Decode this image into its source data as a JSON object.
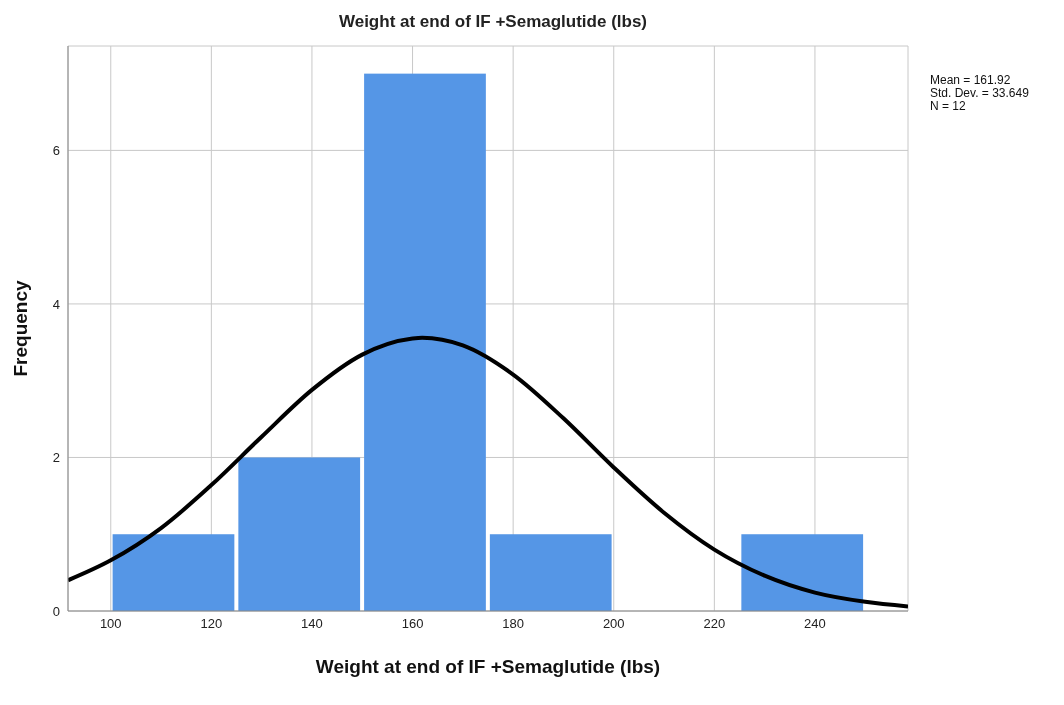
{
  "chart_data": {
    "type": "histogram",
    "title": "Weight at end of IF +Semaglutide (lbs)",
    "xlabel": "Weight at end of IF +Semaglutide (lbs)",
    "ylabel": "Frequency",
    "bins": [
      100,
      125,
      150,
      175,
      200,
      225,
      250
    ],
    "values": [
      1,
      2,
      7,
      1,
      0,
      1
    ],
    "color": "#5596e6",
    "series": [
      {
        "type": "line",
        "color": "#000000",
        "x": [
          91.5,
          100,
          110,
          120,
          130,
          140,
          150,
          160,
          161.92,
          170,
          180,
          190,
          200,
          210,
          220,
          230,
          240,
          250,
          258.5
        ],
        "values": [
          0.4,
          0.66,
          1.08,
          1.64,
          2.27,
          2.88,
          3.34,
          3.55,
          3.56,
          3.46,
          3.08,
          2.51,
          1.87,
          1.28,
          0.8,
          0.46,
          0.24,
          0.12,
          0.06
        ]
      }
    ],
    "xlim": [
      91.5,
      258.5
    ],
    "xticks": [
      100,
      120,
      140,
      160,
      180,
      200,
      220,
      240
    ],
    "ylim": [
      0,
      7.36
    ],
    "yticks": [
      0,
      2,
      4,
      6
    ],
    "grid": true,
    "annotations": [
      "Mean = 161.92",
      "Std. Dev. = 33.649",
      "N = 12"
    ]
  }
}
